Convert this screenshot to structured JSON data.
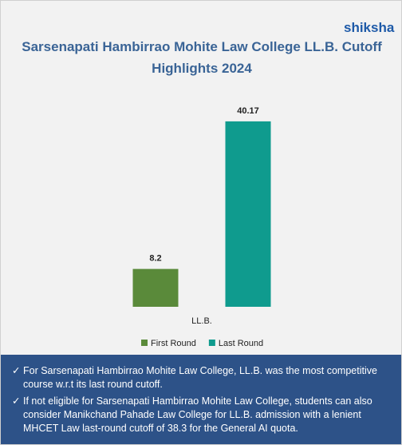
{
  "logo": "shiksha",
  "chart_data": {
    "type": "bar",
    "title": "Sarsenapati Hambirrao Mohite Law College LL.B. Cutoff Highlights 2024",
    "categories": [
      "LL.B."
    ],
    "series": [
      {
        "name": "First Round",
        "color": "#5a8a3a",
        "values": [
          8.2
        ]
      },
      {
        "name": "Last Round",
        "color": "#0f9b8e",
        "values": [
          40.17
        ]
      }
    ],
    "ylim": [
      0,
      45
    ]
  },
  "notes": [
    "For Sarsenapati Hambirrao Mohite Law College, LL.B. was the most competitive course w.r.t its last round cutoff.",
    "If not eligible for Sarsenapati Hambirrao Mohite Law College, students can also consider Manikchand Pahade Law College for LL.B. admission with a lenient MHCET Law last-round cutoff of 38.3 for the General AI quota."
  ]
}
